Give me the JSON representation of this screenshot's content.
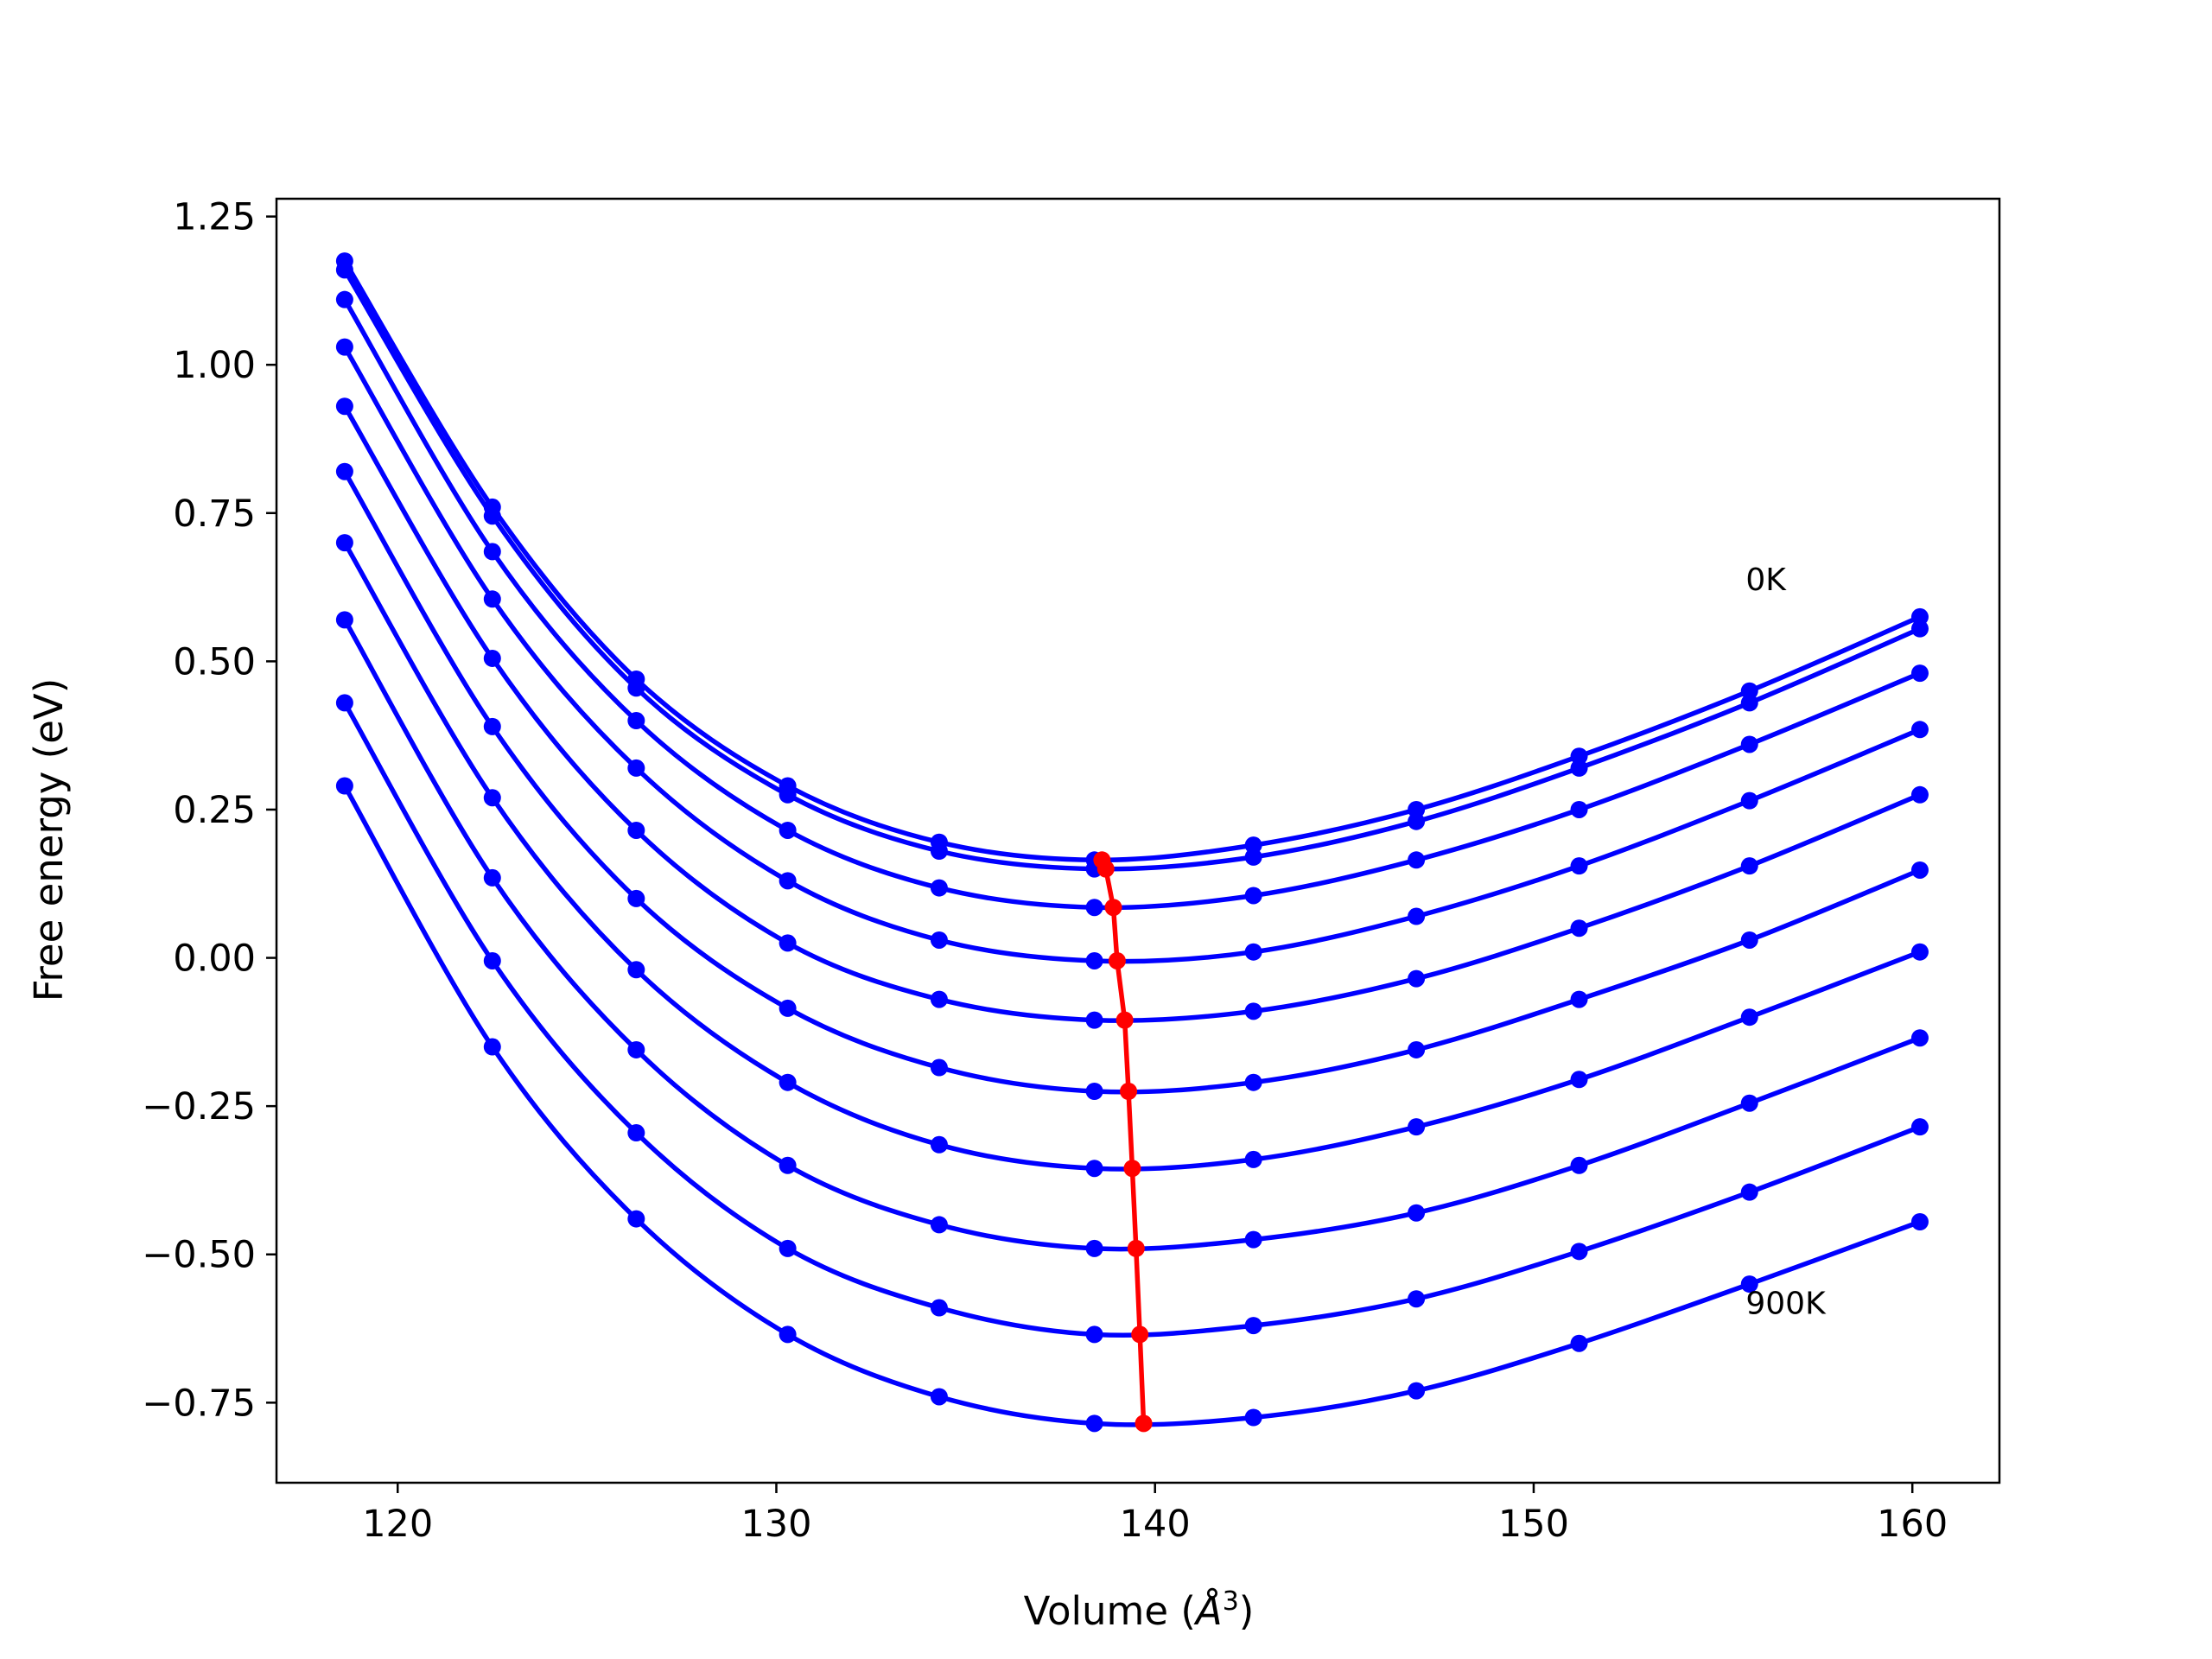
{
  "chart_data": {
    "type": "line",
    "xlabel_text": "Volume (",
    "xlabel_unit": "Å",
    "xlabel_exp": "3",
    "xlabel_close": ")",
    "ylabel": "Free energy (eV)",
    "xlim": [
      116.8,
      162.3
    ],
    "ylim": [
      -0.885,
      1.28
    ],
    "xticks": [
      120,
      130,
      140,
      150,
      160
    ],
    "xtick_labels": [
      "120",
      "130",
      "140",
      "150",
      "160"
    ],
    "yticks": [
      -0.75,
      -0.5,
      -0.25,
      0.0,
      0.25,
      0.5,
      0.75,
      1.0,
      1.25
    ],
    "ytick_labels": [
      "−0.75",
      "−0.50",
      "−0.25",
      "0.00",
      "0.25",
      "0.50",
      "0.75",
      "1.00",
      "1.25"
    ],
    "annotations": [
      {
        "text": "0K",
        "x": 155.6,
        "y": 0.62
      },
      {
        "text": "900K",
        "x": 155.6,
        "y": -0.6
      }
    ],
    "x": [
      118.6,
      122.5,
      126.3,
      130.3,
      134.3,
      138.4,
      142.6,
      146.9,
      151.2,
      155.7,
      160.2
    ],
    "series_color": "#0000ff",
    "series": [
      {
        "values": [
          1.175,
          0.76,
          0.47,
          0.29,
          0.195,
          0.165,
          0.19,
          0.25,
          0.34,
          0.45,
          0.575
        ]
      },
      {
        "values": [
          1.16,
          0.745,
          0.455,
          0.275,
          0.18,
          0.15,
          0.17,
          0.23,
          0.32,
          0.43,
          0.555
        ]
      },
      {
        "values": [
          1.11,
          0.685,
          0.4,
          0.215,
          0.118,
          0.085,
          0.105,
          0.165,
          0.25,
          0.36,
          0.48
        ]
      },
      {
        "values": [
          1.03,
          0.605,
          0.32,
          0.13,
          0.03,
          -0.005,
          0.01,
          0.07,
          0.155,
          0.265,
          0.385
        ]
      },
      {
        "values": [
          0.93,
          0.505,
          0.215,
          0.025,
          -0.07,
          -0.105,
          -0.09,
          -0.035,
          0.05,
          0.155,
          0.275
        ]
      },
      {
        "values": [
          0.82,
          0.39,
          0.1,
          -0.085,
          -0.185,
          -0.225,
          -0.21,
          -0.155,
          -0.07,
          0.03,
          0.148
        ]
      },
      {
        "values": [
          0.7,
          0.27,
          -0.02,
          -0.21,
          -0.315,
          -0.355,
          -0.34,
          -0.285,
          -0.205,
          -0.1,
          0.01
        ]
      },
      {
        "values": [
          0.57,
          0.135,
          -0.155,
          -0.35,
          -0.45,
          -0.49,
          -0.475,
          -0.43,
          -0.35,
          -0.245,
          -0.135
        ]
      },
      {
        "values": [
          0.43,
          -0.005,
          -0.295,
          -0.49,
          -0.59,
          -0.635,
          -0.62,
          -0.575,
          -0.495,
          -0.395,
          -0.285
        ]
      },
      {
        "values": [
          0.29,
          -0.15,
          -0.44,
          -0.635,
          -0.74,
          -0.785,
          -0.775,
          -0.73,
          -0.65,
          -0.55,
          -0.445
        ]
      }
    ],
    "minima_color": "#ff0000",
    "minima": {
      "x": [
        138.6,
        138.7,
        138.9,
        139.0,
        139.2,
        139.3,
        139.4,
        139.5,
        139.6,
        139.7
      ],
      "y": [
        0.165,
        0.15,
        0.085,
        -0.005,
        -0.105,
        -0.225,
        -0.355,
        -0.49,
        -0.635,
        -0.785
      ]
    }
  }
}
